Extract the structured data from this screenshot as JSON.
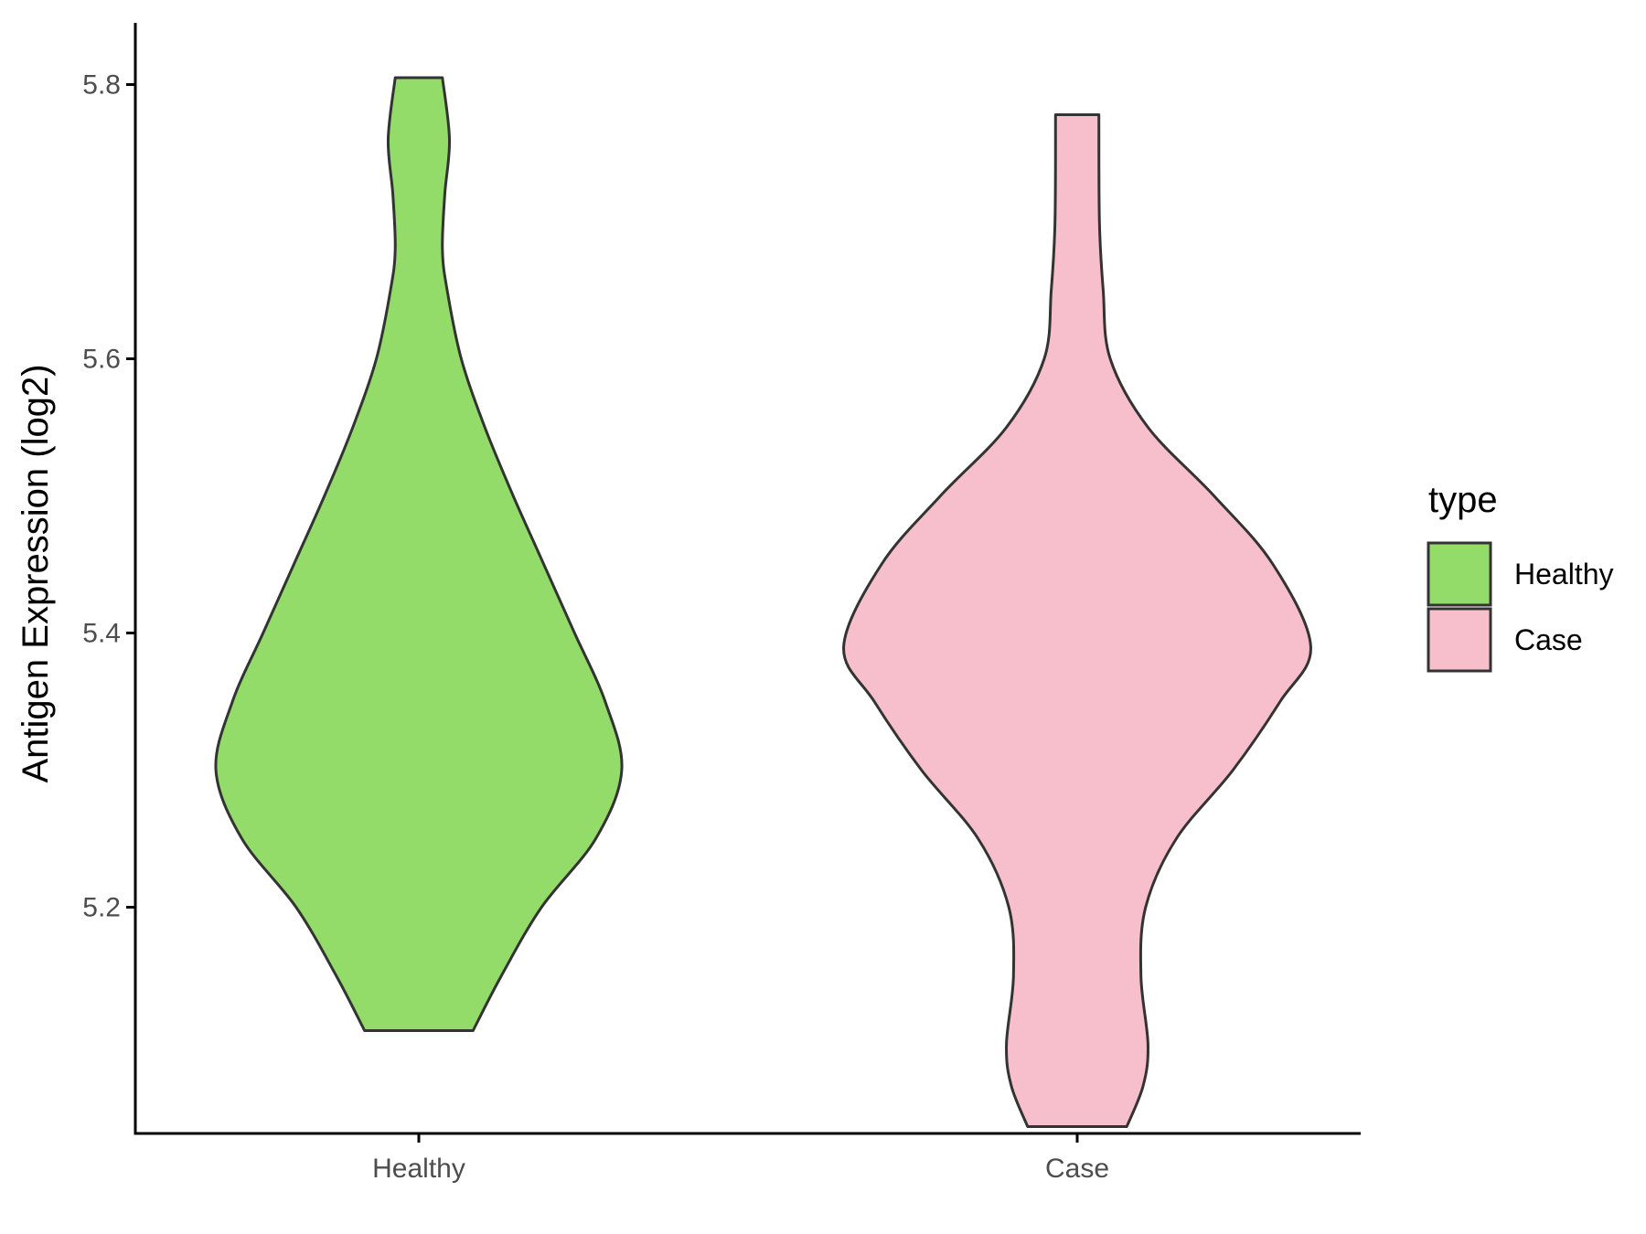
{
  "chart_data": {
    "type": "violin",
    "ylabel": "Antigen Expression (log2)",
    "xlabel": "",
    "ylim": [
      5.035,
      5.845
    ],
    "yticks": [
      5.2,
      5.4,
      5.6,
      5.8
    ],
    "ytick_labels": [
      "5.2",
      "5.4",
      "5.6",
      "5.8"
    ],
    "categories": [
      "Healthy",
      "Case"
    ],
    "grid": false,
    "legend": {
      "title": "type",
      "position": "right",
      "entries": [
        "Healthy",
        "Case"
      ]
    },
    "series": [
      {
        "name": "Healthy",
        "color": "#93DC69",
        "min": 5.11,
        "max": 5.805,
        "density": [
          [
            5.11,
            0.23
          ],
          [
            5.15,
            0.35
          ],
          [
            5.2,
            0.52
          ],
          [
            5.25,
            0.75
          ],
          [
            5.3,
            0.86
          ],
          [
            5.35,
            0.79
          ],
          [
            5.4,
            0.66
          ],
          [
            5.45,
            0.53
          ],
          [
            5.5,
            0.4
          ],
          [
            5.55,
            0.28
          ],
          [
            5.6,
            0.18
          ],
          [
            5.65,
            0.12
          ],
          [
            5.68,
            0.1
          ],
          [
            5.72,
            0.11
          ],
          [
            5.76,
            0.13
          ],
          [
            5.805,
            0.1
          ]
        ]
      },
      {
        "name": "Case",
        "color": "#F7BFCB",
        "min": 5.04,
        "max": 5.778,
        "density": [
          [
            5.04,
            0.21
          ],
          [
            5.07,
            0.28
          ],
          [
            5.1,
            0.3
          ],
          [
            5.15,
            0.27
          ],
          [
            5.2,
            0.29
          ],
          [
            5.25,
            0.42
          ],
          [
            5.3,
            0.66
          ],
          [
            5.35,
            0.86
          ],
          [
            5.39,
            0.99
          ],
          [
            5.45,
            0.83
          ],
          [
            5.5,
            0.58
          ],
          [
            5.55,
            0.3
          ],
          [
            5.6,
            0.14
          ],
          [
            5.65,
            0.11
          ],
          [
            5.7,
            0.094
          ],
          [
            5.778,
            0.092
          ]
        ]
      }
    ]
  }
}
